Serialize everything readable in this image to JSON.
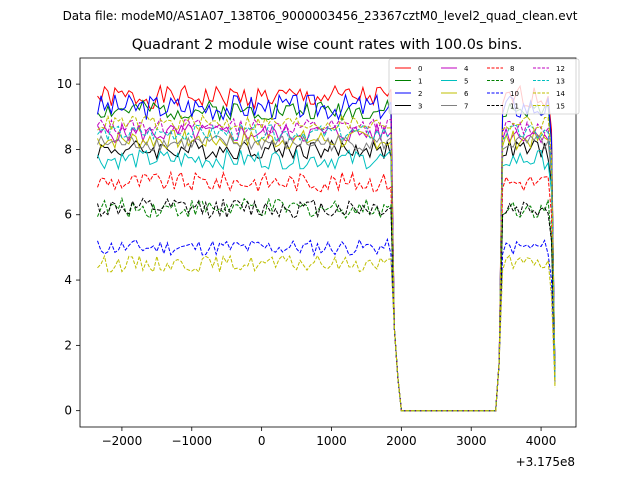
{
  "figure": {
    "suptitle": "Data file: modeM0/AS1A07_138T06_9000003456_23367cztM0_level2_quad_clean.evt"
  },
  "chart_data": {
    "type": "line",
    "title": "Quadrant 2 module wise count rates with 100.0s bins.",
    "xlabel": "",
    "ylabel": "",
    "x_offset_label": "+3.175e8",
    "xlim": [
      -2600,
      4500
    ],
    "ylim": [
      -0.5,
      10.8
    ],
    "x_ticks": [
      -2000,
      -1000,
      0,
      1000,
      2000,
      3000,
      4000
    ],
    "x_tick_labels": [
      "−2000",
      "−1000",
      "0",
      "1000",
      "2000",
      "3000",
      "4000"
    ],
    "y_ticks": [
      0,
      2,
      4,
      6,
      8,
      10
    ],
    "y_tick_labels": [
      "0",
      "2",
      "4",
      "6",
      "8",
      "10"
    ],
    "grid": false,
    "legend_placement": "top-right",
    "legend_columns": 4,
    "x_segment1": [
      -2350,
      1850
    ],
    "x_segment2": [
      3450,
      4150
    ],
    "gap_points_x": [
      1900,
      1950,
      2000,
      2050,
      3350,
      3400
    ],
    "gap_points_y": [
      2.5,
      1.0,
      0.0,
      0.0,
      0.0,
      1.5
    ],
    "end_point_x": 4200,
    "series": [
      {
        "name": "0",
        "color": "#ff0000",
        "dash": "solid",
        "base": 9.6,
        "amp": 0.35,
        "end": 1.0
      },
      {
        "name": "1",
        "color": "#008000",
        "dash": "solid",
        "base": 9.2,
        "amp": 0.3,
        "end": 1.1
      },
      {
        "name": "2",
        "color": "#0000ff",
        "dash": "solid",
        "base": 9.3,
        "amp": 0.4,
        "end": 0.9
      },
      {
        "name": "3",
        "color": "#000000",
        "dash": "solid",
        "base": 8.0,
        "amp": 0.3,
        "end": 1.2
      },
      {
        "name": "4",
        "color": "#bf00bf",
        "dash": "solid",
        "base": 8.5,
        "amp": 0.3,
        "end": 1.0
      },
      {
        "name": "5",
        "color": "#00bfbf",
        "dash": "solid",
        "base": 7.7,
        "amp": 0.3,
        "end": 1.0
      },
      {
        "name": "6",
        "color": "#bfbf00",
        "dash": "solid",
        "base": 8.3,
        "amp": 0.3,
        "end": 0.8
      },
      {
        "name": "7",
        "color": "#808080",
        "dash": "solid",
        "base": 8.2,
        "amp": 0.25,
        "end": 1.0
      },
      {
        "name": "8",
        "color": "#ff0000",
        "dash": "dashed",
        "base": 7.0,
        "amp": 0.3,
        "end": 1.0
      },
      {
        "name": "9",
        "color": "#008000",
        "dash": "dashed",
        "base": 6.2,
        "amp": 0.3,
        "end": 1.1
      },
      {
        "name": "10",
        "color": "#0000ff",
        "dash": "dashed",
        "base": 5.0,
        "amp": 0.25,
        "end": 0.9
      },
      {
        "name": "11",
        "color": "#000000",
        "dash": "dashed",
        "base": 6.2,
        "amp": 0.3,
        "end": 1.2
      },
      {
        "name": "12",
        "color": "#bf00bf",
        "dash": "dashed",
        "base": 8.7,
        "amp": 0.25,
        "end": 1.0
      },
      {
        "name": "13",
        "color": "#00bfbf",
        "dash": "dashed",
        "base": 8.5,
        "amp": 0.25,
        "end": 1.0
      },
      {
        "name": "14",
        "color": "#bfbf00",
        "dash": "dashed",
        "base": 4.5,
        "amp": 0.25,
        "end": 0.7
      },
      {
        "name": "15",
        "color": "#bfbf00",
        "dash": "dashed",
        "base": 8.8,
        "amp": 0.25,
        "end": 0.8
      }
    ]
  }
}
